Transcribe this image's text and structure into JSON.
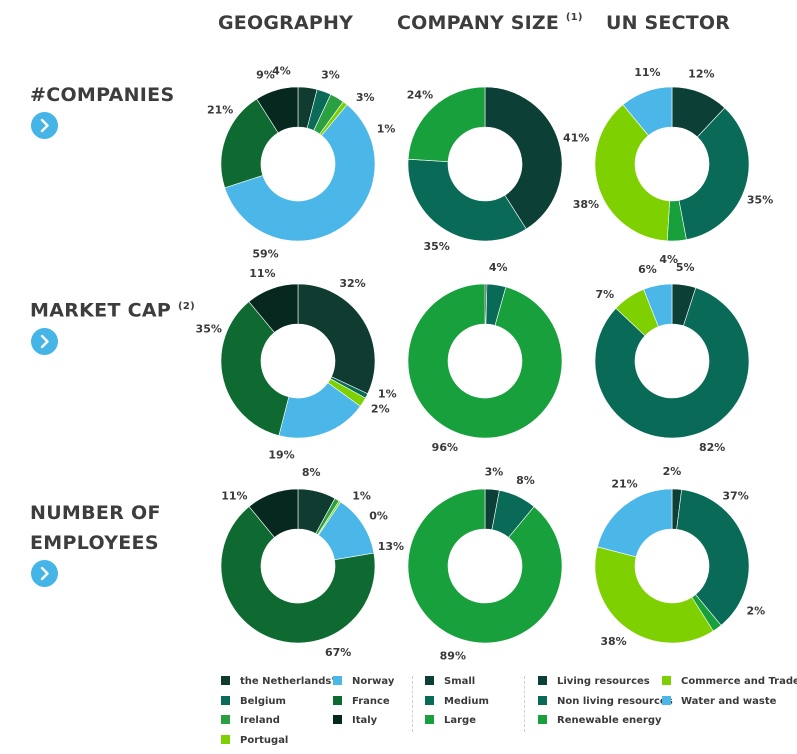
{
  "headers": {
    "geography": "GEOGRAPHY",
    "company_size": "COMPANY SIZE",
    "company_size_note": "(1)",
    "un_sector": "UN SECTOR"
  },
  "rows": {
    "companies": {
      "label": "#COMPANIES",
      "note": ""
    },
    "market_cap": {
      "label": "MARKET CAP",
      "note": "(2)"
    },
    "employees": {
      "label_line1": "NUMBER OF",
      "label_line2": "EMPLOYEES"
    }
  },
  "colors": {
    "the Netherlands'": "#0f3b30",
    "Belgium": "#0a6b58",
    "Ireland": "#2ba042",
    "Portugal": "#7fd000",
    "Norway": "#4bb6e8",
    "France": "#0e6a30",
    "Italy": "#06281e",
    "Small": "#0c3f36",
    "Medium": "#0a6a58",
    "Large": "#17a03c",
    "Living resources": "#0c3f36",
    "Non living resources": "#0a6a58",
    "Renewable energy": "#17a03c",
    "Commerce and Trade": "#7fd000",
    "Water and waste": "#4bb6e8",
    "arrow_button": "#45b5e8"
  },
  "legend": {
    "geography": [
      "the Netherlands'",
      "Belgium",
      "Ireland",
      "Portugal",
      "Norway",
      "France",
      "Italy"
    ],
    "company_size": [
      "Small",
      "Medium",
      "Large"
    ],
    "un_sector": [
      "Living resources",
      "Non living resources",
      "Renewable energy",
      "Commerce and Trade",
      "Water and waste"
    ]
  },
  "chart_data": [
    {
      "type": "pie",
      "name": "companies-geography",
      "slices": [
        {
          "category": "the Netherlands'",
          "value": 4,
          "label": "4%"
        },
        {
          "category": "Belgium",
          "value": 3,
          "label": "3%"
        },
        {
          "category": "Ireland",
          "value": 3,
          "label": "3%"
        },
        {
          "category": "Portugal",
          "value": 1,
          "label": "1%"
        },
        {
          "category": "Norway",
          "value": 59,
          "label": "59%"
        },
        {
          "category": "France",
          "value": 21,
          "label": "21%"
        },
        {
          "category": "Italy",
          "value": 9,
          "label": "9%"
        }
      ]
    },
    {
      "type": "pie",
      "name": "companies-company-size",
      "slices": [
        {
          "category": "Small",
          "value": 41,
          "label": "41%"
        },
        {
          "category": "Medium",
          "value": 35,
          "label": "35%"
        },
        {
          "category": "Large",
          "value": 24,
          "label": "24%"
        }
      ]
    },
    {
      "type": "pie",
      "name": "companies-un-sector",
      "slices": [
        {
          "category": "Living resources",
          "value": 12,
          "label": "12%"
        },
        {
          "category": "Non living resources",
          "value": 35,
          "label": "35%"
        },
        {
          "category": "Renewable energy",
          "value": 4,
          "label": "4%"
        },
        {
          "category": "Commerce and Trade",
          "value": 38,
          "label": "38%"
        },
        {
          "category": "Water and waste",
          "value": 11,
          "label": "11%"
        }
      ]
    },
    {
      "type": "pie",
      "name": "market-cap-geography",
      "slices": [
        {
          "category": "the Netherlands'",
          "value": 32,
          "label": "32%"
        },
        {
          "category": "Belgium",
          "value": 1,
          "label": "1%"
        },
        {
          "category": "Portugal",
          "value": 2,
          "label": "2%"
        },
        {
          "category": "Norway",
          "value": 19,
          "label": "19%"
        },
        {
          "category": "France",
          "value": 35,
          "label": "35%"
        },
        {
          "category": "Italy",
          "value": 11,
          "label": "11%"
        }
      ]
    },
    {
      "type": "pie",
      "name": "market-cap-company-size",
      "slices": [
        {
          "category": "Small",
          "value": 0.4,
          "label": ""
        },
        {
          "category": "Medium",
          "value": 4,
          "label": "4%"
        },
        {
          "category": "Large",
          "value": 96,
          "label": "96%"
        }
      ]
    },
    {
      "type": "pie",
      "name": "market-cap-un-sector",
      "slices": [
        {
          "category": "Living resources",
          "value": 5,
          "label": "5%"
        },
        {
          "category": "Non living resources",
          "value": 82,
          "label": "82%"
        },
        {
          "category": "Commerce and Trade",
          "value": 7,
          "label": "7%"
        },
        {
          "category": "Water and waste",
          "value": 6,
          "label": "6%"
        }
      ]
    },
    {
      "type": "pie",
      "name": "employees-geography",
      "slices": [
        {
          "category": "the Netherlands'",
          "value": 8,
          "label": "8%"
        },
        {
          "category": "Ireland",
          "value": 1,
          "label": "1%"
        },
        {
          "category": "Portugal",
          "value": 0.4,
          "label": "0%"
        },
        {
          "category": "Norway",
          "value": 13,
          "label": "13%"
        },
        {
          "category": "France",
          "value": 67,
          "label": "67%"
        },
        {
          "category": "Italy",
          "value": 11,
          "label": "11%"
        }
      ]
    },
    {
      "type": "pie",
      "name": "employees-company-size",
      "slices": [
        {
          "category": "Small",
          "value": 3,
          "label": "3%"
        },
        {
          "category": "Medium",
          "value": 8,
          "label": "8%"
        },
        {
          "category": "Large",
          "value": 89,
          "label": "89%"
        }
      ]
    },
    {
      "type": "pie",
      "name": "employees-un-sector",
      "slices": [
        {
          "category": "Living resources",
          "value": 2,
          "label": "2%"
        },
        {
          "category": "Non living resources",
          "value": 37,
          "label": "37%"
        },
        {
          "category": "Renewable energy",
          "value": 2,
          "label": "2%"
        },
        {
          "category": "Commerce and Trade",
          "value": 38,
          "label": "38%"
        },
        {
          "category": "Water and waste",
          "value": 21,
          "label": "21%"
        }
      ]
    }
  ]
}
